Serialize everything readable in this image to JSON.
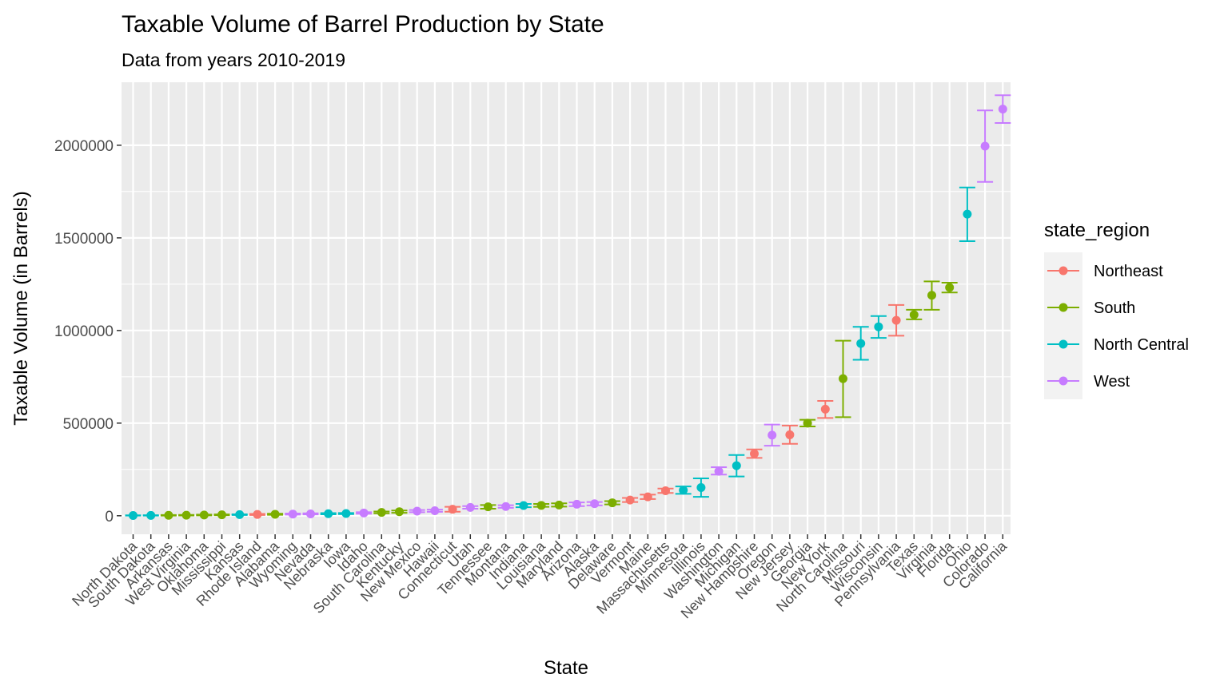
{
  "chart_data": {
    "type": "scatter",
    "title": "Taxable Volume of Barrel Production by State",
    "subtitle": "Data from years 2010-2019",
    "xlabel": "State",
    "ylabel": "Taxable Volume (in Barrels)",
    "ylim": [
      -100000,
      2340000
    ],
    "yticks": [
      0,
      500000,
      1000000,
      1500000,
      2000000
    ],
    "ytick_labels": [
      "0",
      "500000",
      "1000000",
      "1500000",
      "2000000"
    ],
    "grid": true,
    "legend": {
      "title": "state_region",
      "placement": "right",
      "entries": [
        {
          "name": "Northeast",
          "color": "#F8766D"
        },
        {
          "name": "South",
          "color": "#7CAE00"
        },
        {
          "name": "North Central",
          "color": "#00BFC4"
        },
        {
          "name": "West",
          "color": "#C77CFF"
        }
      ]
    },
    "points": [
      {
        "state": "North Dakota",
        "region": "North Central",
        "mean": 1500,
        "low": 500,
        "high": 2500
      },
      {
        "state": "South Dakota",
        "region": "North Central",
        "mean": 1800,
        "low": 800,
        "high": 2800
      },
      {
        "state": "Arkansas",
        "region": "South",
        "mean": 2500,
        "low": 1000,
        "high": 4000
      },
      {
        "state": "West Virginia",
        "region": "South",
        "mean": 3000,
        "low": 1500,
        "high": 4500
      },
      {
        "state": "Oklahoma",
        "region": "South",
        "mean": 4000,
        "low": 2000,
        "high": 6000
      },
      {
        "state": "Mississippi",
        "region": "South",
        "mean": 5000,
        "low": 3000,
        "high": 7000
      },
      {
        "state": "Kansas",
        "region": "North Central",
        "mean": 6000,
        "low": 4000,
        "high": 8000
      },
      {
        "state": "Rhode Island",
        "region": "Northeast",
        "mean": 7000,
        "low": 4000,
        "high": 10000
      },
      {
        "state": "Alabama",
        "region": "South",
        "mean": 8000,
        "low": 5000,
        "high": 11000
      },
      {
        "state": "Wyoming",
        "region": "West",
        "mean": 9000,
        "low": 6000,
        "high": 12000
      },
      {
        "state": "Nevada",
        "region": "West",
        "mean": 10000,
        "low": 7000,
        "high": 13000
      },
      {
        "state": "Nebraska",
        "region": "North Central",
        "mean": 11000,
        "low": 8000,
        "high": 14000
      },
      {
        "state": "Iowa",
        "region": "North Central",
        "mean": 12000,
        "low": 9000,
        "high": 15000
      },
      {
        "state": "Idaho",
        "region": "West",
        "mean": 15000,
        "low": 11000,
        "high": 19000
      },
      {
        "state": "South Carolina",
        "region": "South",
        "mean": 18000,
        "low": 13000,
        "high": 23000
      },
      {
        "state": "Kentucky",
        "region": "South",
        "mean": 22000,
        "low": 16000,
        "high": 28000
      },
      {
        "state": "New Mexico",
        "region": "West",
        "mean": 25000,
        "low": 19000,
        "high": 31000
      },
      {
        "state": "Hawaii",
        "region": "West",
        "mean": 27000,
        "low": 21000,
        "high": 33000
      },
      {
        "state": "Connecticut",
        "region": "Northeast",
        "mean": 35000,
        "low": 22000,
        "high": 48000
      },
      {
        "state": "Utah",
        "region": "West",
        "mean": 45000,
        "low": 38000,
        "high": 52000
      },
      {
        "state": "Tennessee",
        "region": "South",
        "mean": 48000,
        "low": 38000,
        "high": 58000
      },
      {
        "state": "Montana",
        "region": "West",
        "mean": 50000,
        "low": 43000,
        "high": 57000
      },
      {
        "state": "Indiana",
        "region": "North Central",
        "mean": 55000,
        "low": 46000,
        "high": 64000
      },
      {
        "state": "Louisiana",
        "region": "South",
        "mean": 56000,
        "low": 48000,
        "high": 64000
      },
      {
        "state": "Maryland",
        "region": "South",
        "mean": 58000,
        "low": 49000,
        "high": 67000
      },
      {
        "state": "Arizona",
        "region": "West",
        "mean": 62000,
        "low": 52000,
        "high": 72000
      },
      {
        "state": "Alaska",
        "region": "West",
        "mean": 65000,
        "low": 56000,
        "high": 74000
      },
      {
        "state": "Delaware",
        "region": "South",
        "mean": 70000,
        "low": 61000,
        "high": 79000
      },
      {
        "state": "Vermont",
        "region": "Northeast",
        "mean": 85000,
        "low": 74000,
        "high": 96000
      },
      {
        "state": "Maine",
        "region": "Northeast",
        "mean": 102000,
        "low": 90000,
        "high": 114000
      },
      {
        "state": "Massachusetts",
        "region": "Northeast",
        "mean": 135000,
        "low": 123000,
        "high": 147000
      },
      {
        "state": "Minnesota",
        "region": "North Central",
        "mean": 138000,
        "low": 118000,
        "high": 158000
      },
      {
        "state": "Illinois",
        "region": "North Central",
        "mean": 152000,
        "low": 102000,
        "high": 202000
      },
      {
        "state": "Washington",
        "region": "West",
        "mean": 240000,
        "low": 222000,
        "high": 262000
      },
      {
        "state": "Michigan",
        "region": "North Central",
        "mean": 270000,
        "low": 212000,
        "high": 328000
      },
      {
        "state": "New Hampshire",
        "region": "Northeast",
        "mean": 335000,
        "low": 312000,
        "high": 358000
      },
      {
        "state": "Oregon",
        "region": "West",
        "mean": 435000,
        "low": 378000,
        "high": 492000
      },
      {
        "state": "New Jersey",
        "region": "Northeast",
        "mean": 437000,
        "low": 388000,
        "high": 487000
      },
      {
        "state": "Georgia",
        "region": "South",
        "mean": 500000,
        "low": 482000,
        "high": 518000
      },
      {
        "state": "New York",
        "region": "Northeast",
        "mean": 575000,
        "low": 528000,
        "high": 620000
      },
      {
        "state": "North Carolina",
        "region": "South",
        "mean": 740000,
        "low": 532000,
        "high": 945000
      },
      {
        "state": "Missouri",
        "region": "North Central",
        "mean": 930000,
        "low": 842000,
        "high": 1020000
      },
      {
        "state": "Wisconsin",
        "region": "North Central",
        "mean": 1020000,
        "low": 960000,
        "high": 1078000
      },
      {
        "state": "Pennsylvania",
        "region": "Northeast",
        "mean": 1055000,
        "low": 972000,
        "high": 1138000
      },
      {
        "state": "Texas",
        "region": "South",
        "mean": 1085000,
        "low": 1060000,
        "high": 1112000
      },
      {
        "state": "Virginia",
        "region": "South",
        "mean": 1190000,
        "low": 1112000,
        "high": 1265000
      },
      {
        "state": "Florida",
        "region": "South",
        "mean": 1232000,
        "low": 1205000,
        "high": 1258000
      },
      {
        "state": "Ohio",
        "region": "North Central",
        "mean": 1628000,
        "low": 1482000,
        "high": 1772000
      },
      {
        "state": "Colorado",
        "region": "West",
        "mean": 1995000,
        "low": 1802000,
        "high": 2188000
      },
      {
        "state": "California",
        "region": "West",
        "mean": 2195000,
        "low": 2120000,
        "high": 2270000
      }
    ]
  }
}
